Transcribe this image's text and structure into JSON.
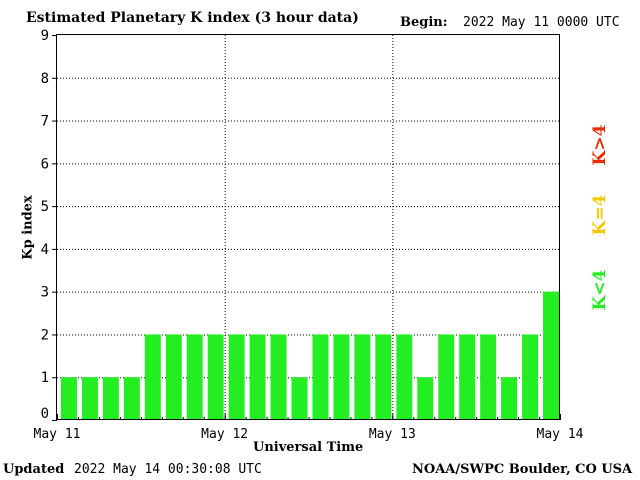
{
  "header": {
    "title": "Estimated Planetary K index (3 hour data)",
    "begin_label": "Begin:",
    "begin_date": "2022 May 11 0000 UTC"
  },
  "footer": {
    "updated_label": "Updated",
    "updated_time": "2022 May 14 00:30:08 UTC",
    "credit": "NOAA/SWPC Boulder, CO USA"
  },
  "legend": {
    "low": "K<4",
    "mid": "K=4",
    "high": "K>4",
    "colors": {
      "low": "#22ee22",
      "mid": "#f5c800",
      "high": "#ee2a00"
    }
  },
  "chart_data": {
    "type": "bar",
    "title": "Estimated Planetary K index (3 hour data)",
    "xlabel": "Universal Time",
    "ylabel": "Kp index",
    "ylim": [
      0,
      9
    ],
    "yticks": [
      "0",
      "1",
      "2",
      "3",
      "4",
      "5",
      "6",
      "7",
      "8",
      "9"
    ],
    "xticks": [
      "May 11",
      "May 12",
      "May 13",
      "May 14"
    ],
    "grid": true,
    "bar_color": "#22ee22",
    "values": [
      1,
      1,
      1,
      1,
      2,
      2,
      2,
      2,
      2,
      2,
      2,
      1,
      2,
      2,
      2,
      2,
      2,
      1,
      2,
      2,
      2,
      1,
      2,
      3
    ]
  }
}
